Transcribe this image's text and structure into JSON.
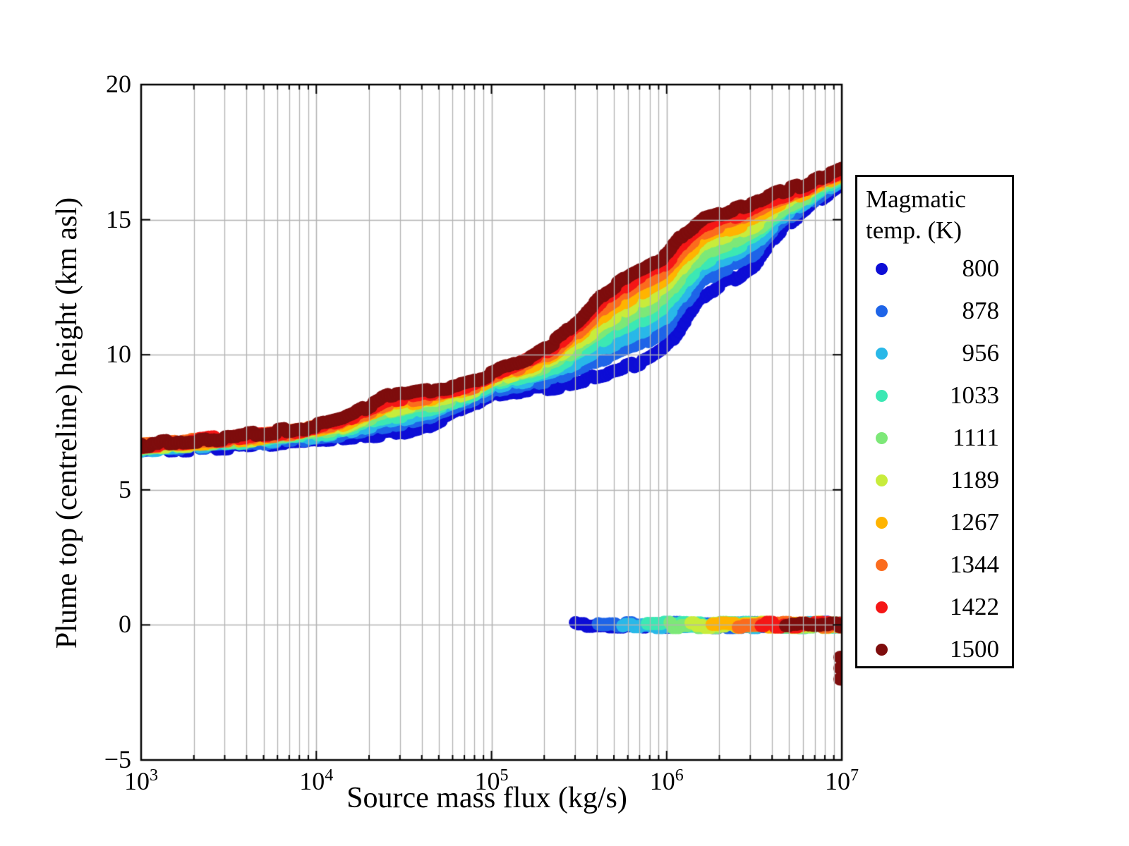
{
  "axes": {
    "x": {
      "label": "Source mass flux (kg/s)",
      "ticks": [
        {
          "base": "10",
          "exp": "3"
        },
        {
          "base": "10",
          "exp": "4"
        },
        {
          "base": "10",
          "exp": "5"
        },
        {
          "base": "10",
          "exp": "6"
        },
        {
          "base": "10",
          "exp": "7"
        }
      ]
    },
    "y": {
      "label": "Plume top (centreline) height (km asl)",
      "ticks": [
        "20",
        "15",
        "10",
        "5",
        "0",
        "−5"
      ],
      "tick_values": [
        20,
        15,
        10,
        5,
        0,
        -5
      ]
    }
  },
  "legend": {
    "title_line1": "Magmatic",
    "title_line2": "temp. (K)",
    "entries": [
      {
        "label": "800"
      },
      {
        "label": "878"
      },
      {
        "label": "956"
      },
      {
        "label": "1033"
      },
      {
        "label": "1111"
      },
      {
        "label": "1189"
      },
      {
        "label": "1267"
      },
      {
        "label": "1344"
      },
      {
        "label": "1422"
      },
      {
        "label": "1500"
      }
    ]
  },
  "chart_data": {
    "type": "scatter",
    "title": "",
    "xlabel": "Source mass flux (kg/s)",
    "ylabel": "Plume top (centreline) height (km asl)",
    "x_scale": "log",
    "x_range_log10": [
      3,
      7
    ],
    "y_range": [
      -5,
      20
    ],
    "x_major_ticks": [
      1000,
      10000,
      100000,
      1000000,
      10000000
    ],
    "y_major_ticks": [
      -5,
      0,
      5,
      10,
      15,
      20
    ],
    "grid": "on",
    "grid_color": "#b3b3b3",
    "legend_title": "Magmatic temp. (K)",
    "legend_position": "right",
    "series": [
      {
        "temp_K": 800,
        "color": "#0D0DD6",
        "collapse_onset_log10": 5.48
      },
      {
        "temp_K": 878,
        "color": "#1E64E8",
        "collapse_onset_log10": 5.61
      },
      {
        "temp_K": 956,
        "color": "#29B8E8",
        "collapse_onset_log10": 5.75
      },
      {
        "temp_K": 1033,
        "color": "#3CE8B4",
        "collapse_onset_log10": 5.89
      },
      {
        "temp_K": 1111,
        "color": "#7DE878",
        "collapse_onset_log10": 6.02
      },
      {
        "temp_K": 1189,
        "color": "#C8EC3C",
        "collapse_onset_log10": 6.14
      },
      {
        "temp_K": 1267,
        "color": "#FFB400",
        "collapse_onset_log10": 6.26
      },
      {
        "temp_K": 1344,
        "color": "#FB6C1E",
        "collapse_onset_log10": 6.41
      },
      {
        "temp_K": 1422,
        "color": "#F51616",
        "collapse_onset_log10": 6.54
      },
      {
        "temp_K": 1500,
        "color": "#7E0D0D",
        "collapse_onset_log10": 6.68
      }
    ],
    "band_envelope": {
      "log10_flux": [
        3.0,
        3.25,
        3.5,
        3.75,
        4.0,
        4.15,
        4.3,
        4.4,
        4.5,
        4.65,
        4.8,
        4.9,
        5.0,
        5.1,
        5.2,
        5.35,
        5.5,
        5.65,
        5.8,
        5.9,
        6.0,
        6.1,
        6.2,
        6.3,
        6.4,
        6.5,
        6.6,
        6.7,
        6.8,
        6.9,
        7.0
      ],
      "plume_height_800K": [
        6.45,
        6.52,
        6.6,
        6.72,
        6.85,
        6.93,
        7.02,
        7.08,
        7.18,
        7.42,
        7.9,
        8.2,
        8.5,
        8.6,
        8.7,
        8.8,
        9.0,
        9.25,
        9.6,
        9.85,
        10.3,
        11.2,
        12.1,
        12.6,
        12.85,
        13.3,
        14.2,
        14.9,
        15.4,
        15.9,
        16.35
      ],
      "plume_height_1500K": [
        6.67,
        6.8,
        6.95,
        7.12,
        7.35,
        7.6,
        8.1,
        8.45,
        8.55,
        8.7,
        8.85,
        9.0,
        9.35,
        9.6,
        9.85,
        10.4,
        11.3,
        12.3,
        13.0,
        13.35,
        13.7,
        14.5,
        15.0,
        15.2,
        15.4,
        15.6,
        15.9,
        16.1,
        16.3,
        16.6,
        16.85
      ],
      "note": "height envelopes of coolest (800 K) and hottest (1500 K) series; intermediate temperatures lie between, ordered by temperature"
    },
    "collapsed_row": {
      "height_km": 0,
      "end_log10_flux": 7,
      "note": "each series also plots points at 0 km asl from its collapse_onset_log10 up to 1e7 kg/s"
    },
    "outliers": [
      {
        "temp_K": 1500,
        "log10_flux": 6.99,
        "heights_km": [
          -1.2,
          -1.6,
          -2.0
        ]
      }
    ]
  }
}
